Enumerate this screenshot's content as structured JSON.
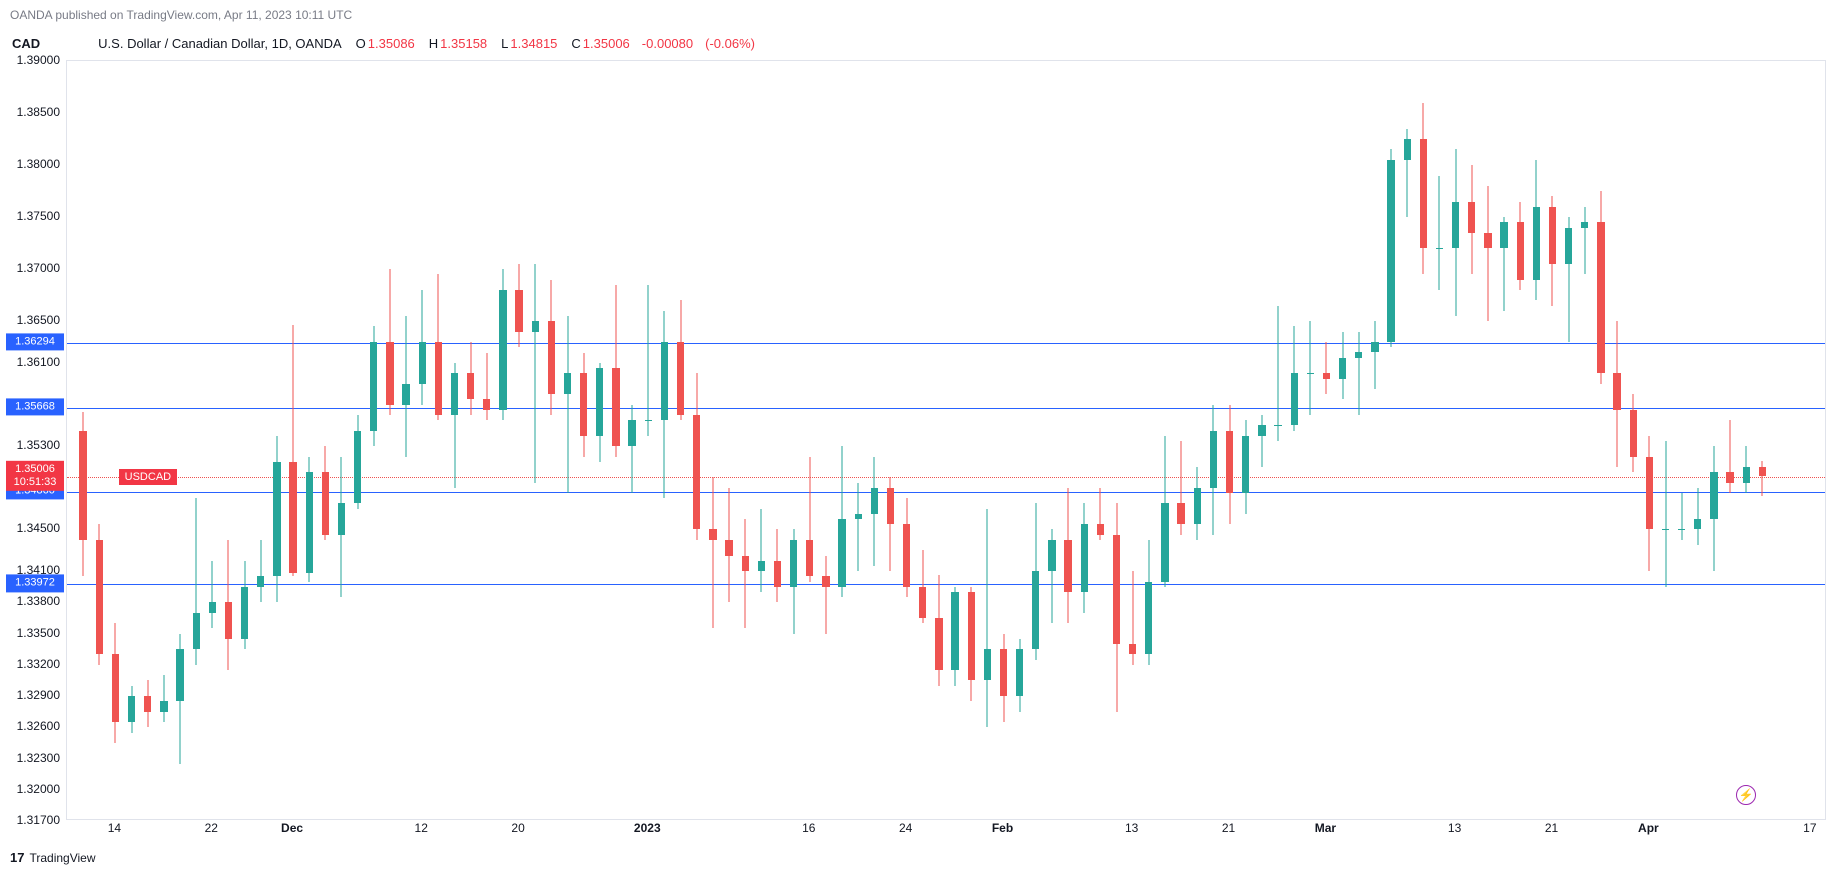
{
  "header": {
    "text": "OANDA published on TradingView.com, Apr 11, 2023 10:11 UTC"
  },
  "legend": {
    "currency": "CAD",
    "symbol_desc": "U.S. Dollar / Canadian Dollar, 1D, OANDA",
    "O_label": "O",
    "O": "1.35086",
    "H_label": "H",
    "H": "1.35158",
    "L_label": "L",
    "L": "1.34815",
    "C_label": "C",
    "C": "1.35006",
    "chg": "-0.00080",
    "chg_pct": "(-0.06%)",
    "ohlc_color": "#f23645"
  },
  "footer": {
    "brand": "TradingView",
    "icon": "17"
  },
  "chart": {
    "type": "candlestick",
    "ymin": 1.317,
    "ymax": 1.39,
    "xmin": 0,
    "xmax": 109,
    "colors": {
      "up": "#26a69a",
      "down": "#ef5350",
      "hline": "#2962ff",
      "grid": "#e0e3eb",
      "bg": "#ffffff"
    },
    "yticks": [
      {
        "v": 1.39,
        "l": "1.39000"
      },
      {
        "v": 1.385,
        "l": "1.38500"
      },
      {
        "v": 1.38,
        "l": "1.38000"
      },
      {
        "v": 1.375,
        "l": "1.37500"
      },
      {
        "v": 1.37,
        "l": "1.37000"
      },
      {
        "v": 1.365,
        "l": "1.36500"
      },
      {
        "v": 1.361,
        "l": "1.36100"
      },
      {
        "v": 1.353,
        "l": "1.35300"
      },
      {
        "v": 1.345,
        "l": "1.34500"
      },
      {
        "v": 1.341,
        "l": "1.34100"
      },
      {
        "v": 1.338,
        "l": "1.33800"
      },
      {
        "v": 1.335,
        "l": "1.33500"
      },
      {
        "v": 1.332,
        "l": "1.33200"
      },
      {
        "v": 1.329,
        "l": "1.32900"
      },
      {
        "v": 1.326,
        "l": "1.32600"
      },
      {
        "v": 1.323,
        "l": "1.32300"
      },
      {
        "v": 1.32,
        "l": "1.32000"
      },
      {
        "v": 1.317,
        "l": "1.31700"
      }
    ],
    "xticks": [
      {
        "x": 3,
        "l": "14"
      },
      {
        "x": 9,
        "l": "22"
      },
      {
        "x": 14,
        "l": "Dec",
        "major": true
      },
      {
        "x": 22,
        "l": "12"
      },
      {
        "x": 28,
        "l": "20"
      },
      {
        "x": 36,
        "l": "2023",
        "major": true
      },
      {
        "x": 46,
        "l": "16"
      },
      {
        "x": 52,
        "l": "24"
      },
      {
        "x": 58,
        "l": "Feb",
        "major": true
      },
      {
        "x": 66,
        "l": "13"
      },
      {
        "x": 72,
        "l": "21"
      },
      {
        "x": 78,
        "l": "Mar",
        "major": true
      },
      {
        "x": 86,
        "l": "13"
      },
      {
        "x": 92,
        "l": "21"
      },
      {
        "x": 98,
        "l": "Apr",
        "major": true
      },
      {
        "x": 108,
        "l": "17"
      }
    ],
    "hlines": [
      {
        "v": 1.36294,
        "l": "1.36294",
        "bg": "#2962ff"
      },
      {
        "v": 1.35668,
        "l": "1.35668",
        "bg": "#2962ff"
      },
      {
        "v": 1.3486,
        "l": "1.34860",
        "bg": "#2962ff"
      },
      {
        "v": 1.33972,
        "l": "1.33972",
        "bg": "#2962ff"
      }
    ],
    "price_line": {
      "v": 1.35006,
      "l": "1.35006",
      "sub": "10:51:33",
      "bg": "#f23645"
    },
    "ticker_badge": {
      "v": 1.35006,
      "l": "USDCAD",
      "bg": "#f23645",
      "x": 3.2
    },
    "snap_icon": {
      "x": 104,
      "v": 1.3195
    },
    "candles": [
      {
        "x": 1,
        "o": 1.3545,
        "h": 1.3563,
        "l": 1.3405,
        "c": 1.344
      },
      {
        "x": 2,
        "o": 1.344,
        "h": 1.3455,
        "l": 1.332,
        "c": 1.333
      },
      {
        "x": 3,
        "o": 1.333,
        "h": 1.336,
        "l": 1.3245,
        "c": 1.3265
      },
      {
        "x": 4,
        "o": 1.3265,
        "h": 1.33,
        "l": 1.3255,
        "c": 1.329
      },
      {
        "x": 5,
        "o": 1.329,
        "h": 1.3305,
        "l": 1.326,
        "c": 1.3275
      },
      {
        "x": 6,
        "o": 1.3275,
        "h": 1.331,
        "l": 1.3265,
        "c": 1.3285
      },
      {
        "x": 7,
        "o": 1.3285,
        "h": 1.335,
        "l": 1.3225,
        "c": 1.3335
      },
      {
        "x": 8,
        "o": 1.3335,
        "h": 1.348,
        "l": 1.332,
        "c": 1.337
      },
      {
        "x": 9,
        "o": 1.337,
        "h": 1.342,
        "l": 1.3355,
        "c": 1.338
      },
      {
        "x": 10,
        "o": 1.338,
        "h": 1.344,
        "l": 1.3315,
        "c": 1.3345
      },
      {
        "x": 11,
        "o": 1.3345,
        "h": 1.342,
        "l": 1.3335,
        "c": 1.3395
      },
      {
        "x": 12,
        "o": 1.3395,
        "h": 1.344,
        "l": 1.338,
        "c": 1.3405
      },
      {
        "x": 13,
        "o": 1.3405,
        "h": 1.354,
        "l": 1.338,
        "c": 1.3515
      },
      {
        "x": 14,
        "o": 1.3515,
        "h": 1.3646,
        "l": 1.3405,
        "c": 1.3408
      },
      {
        "x": 15,
        "o": 1.3408,
        "h": 1.352,
        "l": 1.34,
        "c": 1.3505
      },
      {
        "x": 16,
        "o": 1.3505,
        "h": 1.353,
        "l": 1.344,
        "c": 1.3445
      },
      {
        "x": 17,
        "o": 1.3445,
        "h": 1.352,
        "l": 1.3385,
        "c": 1.3475
      },
      {
        "x": 18,
        "o": 1.3475,
        "h": 1.356,
        "l": 1.347,
        "c": 1.3545
      },
      {
        "x": 19,
        "o": 1.3545,
        "h": 1.3645,
        "l": 1.353,
        "c": 1.363
      },
      {
        "x": 20,
        "o": 1.363,
        "h": 1.37,
        "l": 1.356,
        "c": 1.357
      },
      {
        "x": 21,
        "o": 1.357,
        "h": 1.3655,
        "l": 1.352,
        "c": 1.359
      },
      {
        "x": 22,
        "o": 1.359,
        "h": 1.368,
        "l": 1.357,
        "c": 1.363
      },
      {
        "x": 23,
        "o": 1.363,
        "h": 1.3695,
        "l": 1.3555,
        "c": 1.356
      },
      {
        "x": 24,
        "o": 1.356,
        "h": 1.361,
        "l": 1.349,
        "c": 1.36
      },
      {
        "x": 25,
        "o": 1.36,
        "h": 1.363,
        "l": 1.356,
        "c": 1.3575
      },
      {
        "x": 26,
        "o": 1.3575,
        "h": 1.362,
        "l": 1.3555,
        "c": 1.3565
      },
      {
        "x": 27,
        "o": 1.3565,
        "h": 1.37,
        "l": 1.3555,
        "c": 1.368
      },
      {
        "x": 28,
        "o": 1.368,
        "h": 1.3705,
        "l": 1.3625,
        "c": 1.364
      },
      {
        "x": 29,
        "o": 1.364,
        "h": 1.3705,
        "l": 1.3495,
        "c": 1.365
      },
      {
        "x": 30,
        "o": 1.365,
        "h": 1.369,
        "l": 1.356,
        "c": 1.358
      },
      {
        "x": 31,
        "o": 1.358,
        "h": 1.3655,
        "l": 1.3485,
        "c": 1.36
      },
      {
        "x": 32,
        "o": 1.36,
        "h": 1.362,
        "l": 1.352,
        "c": 1.354
      },
      {
        "x": 33,
        "o": 1.354,
        "h": 1.361,
        "l": 1.3515,
        "c": 1.3605
      },
      {
        "x": 34,
        "o": 1.3605,
        "h": 1.3685,
        "l": 1.352,
        "c": 1.353
      },
      {
        "x": 35,
        "o": 1.353,
        "h": 1.357,
        "l": 1.3485,
        "c": 1.3555
      },
      {
        "x": 36,
        "o": 1.3555,
        "h": 1.3685,
        "l": 1.354,
        "c": 1.3555
      },
      {
        "x": 37,
        "o": 1.3555,
        "h": 1.366,
        "l": 1.348,
        "c": 1.363
      },
      {
        "x": 38,
        "o": 1.363,
        "h": 1.367,
        "l": 1.3555,
        "c": 1.356
      },
      {
        "x": 39,
        "o": 1.356,
        "h": 1.36,
        "l": 1.344,
        "c": 1.345
      },
      {
        "x": 40,
        "o": 1.345,
        "h": 1.35,
        "l": 1.3355,
        "c": 1.344
      },
      {
        "x": 41,
        "o": 1.344,
        "h": 1.349,
        "l": 1.338,
        "c": 1.3425
      },
      {
        "x": 42,
        "o": 1.3425,
        "h": 1.346,
        "l": 1.3355,
        "c": 1.341
      },
      {
        "x": 43,
        "o": 1.341,
        "h": 1.347,
        "l": 1.339,
        "c": 1.342
      },
      {
        "x": 44,
        "o": 1.342,
        "h": 1.345,
        "l": 1.338,
        "c": 1.3395
      },
      {
        "x": 45,
        "o": 1.3395,
        "h": 1.345,
        "l": 1.335,
        "c": 1.344
      },
      {
        "x": 46,
        "o": 1.344,
        "h": 1.352,
        "l": 1.34,
        "c": 1.3405
      },
      {
        "x": 47,
        "o": 1.3405,
        "h": 1.3425,
        "l": 1.335,
        "c": 1.3395
      },
      {
        "x": 48,
        "o": 1.3395,
        "h": 1.353,
        "l": 1.3385,
        "c": 1.346
      },
      {
        "x": 49,
        "o": 1.346,
        "h": 1.3495,
        "l": 1.341,
        "c": 1.3465
      },
      {
        "x": 50,
        "o": 1.3465,
        "h": 1.352,
        "l": 1.3415,
        "c": 1.349
      },
      {
        "x": 51,
        "o": 1.349,
        "h": 1.35,
        "l": 1.341,
        "c": 1.3455
      },
      {
        "x": 52,
        "o": 1.3455,
        "h": 1.348,
        "l": 1.3385,
        "c": 1.3395
      },
      {
        "x": 53,
        "o": 1.3395,
        "h": 1.343,
        "l": 1.336,
        "c": 1.3365
      },
      {
        "x": 54,
        "o": 1.3365,
        "h": 1.3406,
        "l": 1.33,
        "c": 1.3315
      },
      {
        "x": 55,
        "o": 1.3315,
        "h": 1.3395,
        "l": 1.33,
        "c": 1.339
      },
      {
        "x": 56,
        "o": 1.339,
        "h": 1.3395,
        "l": 1.3285,
        "c": 1.3305
      },
      {
        "x": 57,
        "o": 1.3305,
        "h": 1.347,
        "l": 1.326,
        "c": 1.3335
      },
      {
        "x": 58,
        "o": 1.3335,
        "h": 1.335,
        "l": 1.3265,
        "c": 1.329
      },
      {
        "x": 59,
        "o": 1.329,
        "h": 1.3345,
        "l": 1.3275,
        "c": 1.3335
      },
      {
        "x": 60,
        "o": 1.3335,
        "h": 1.3475,
        "l": 1.3325,
        "c": 1.341
      },
      {
        "x": 61,
        "o": 1.341,
        "h": 1.345,
        "l": 1.336,
        "c": 1.344
      },
      {
        "x": 62,
        "o": 1.344,
        "h": 1.349,
        "l": 1.336,
        "c": 1.339
      },
      {
        "x": 63,
        "o": 1.339,
        "h": 1.3475,
        "l": 1.337,
        "c": 1.3455
      },
      {
        "x": 64,
        "o": 1.3455,
        "h": 1.349,
        "l": 1.344,
        "c": 1.3445
      },
      {
        "x": 65,
        "o": 1.3445,
        "h": 1.3475,
        "l": 1.3275,
        "c": 1.334
      },
      {
        "x": 66,
        "o": 1.334,
        "h": 1.341,
        "l": 1.332,
        "c": 1.333
      },
      {
        "x": 67,
        "o": 1.333,
        "h": 1.344,
        "l": 1.332,
        "c": 1.34
      },
      {
        "x": 68,
        "o": 1.34,
        "h": 1.354,
        "l": 1.3395,
        "c": 1.3475
      },
      {
        "x": 69,
        "o": 1.3475,
        "h": 1.3535,
        "l": 1.3445,
        "c": 1.3455
      },
      {
        "x": 70,
        "o": 1.3455,
        "h": 1.351,
        "l": 1.344,
        "c": 1.349
      },
      {
        "x": 71,
        "o": 1.349,
        "h": 1.357,
        "l": 1.3445,
        "c": 1.3545
      },
      {
        "x": 72,
        "o": 1.3545,
        "h": 1.357,
        "l": 1.3455,
        "c": 1.3485
      },
      {
        "x": 73,
        "o": 1.3485,
        "h": 1.3555,
        "l": 1.3465,
        "c": 1.354
      },
      {
        "x": 74,
        "o": 1.354,
        "h": 1.356,
        "l": 1.351,
        "c": 1.355
      },
      {
        "x": 75,
        "o": 1.355,
        "h": 1.3665,
        "l": 1.3535,
        "c": 1.355
      },
      {
        "x": 76,
        "o": 1.355,
        "h": 1.3645,
        "l": 1.3545,
        "c": 1.36
      },
      {
        "x": 77,
        "o": 1.36,
        "h": 1.365,
        "l": 1.356,
        "c": 1.36
      },
      {
        "x": 78,
        "o": 1.36,
        "h": 1.363,
        "l": 1.358,
        "c": 1.3595
      },
      {
        "x": 79,
        "o": 1.3595,
        "h": 1.364,
        "l": 1.3575,
        "c": 1.3615
      },
      {
        "x": 80,
        "o": 1.3615,
        "h": 1.364,
        "l": 1.356,
        "c": 1.362
      },
      {
        "x": 81,
        "o": 1.362,
        "h": 1.365,
        "l": 1.3585,
        "c": 1.363
      },
      {
        "x": 82,
        "o": 1.363,
        "h": 1.3815,
        "l": 1.3625,
        "c": 1.3805
      },
      {
        "x": 83,
        "o": 1.3805,
        "h": 1.3835,
        "l": 1.375,
        "c": 1.3825
      },
      {
        "x": 84,
        "o": 1.3825,
        "h": 1.386,
        "l": 1.3695,
        "c": 1.372
      },
      {
        "x": 85,
        "o": 1.372,
        "h": 1.379,
        "l": 1.368,
        "c": 1.372
      },
      {
        "x": 86,
        "o": 1.372,
        "h": 1.3815,
        "l": 1.3655,
        "c": 1.3765
      },
      {
        "x": 87,
        "o": 1.3765,
        "h": 1.38,
        "l": 1.3695,
        "c": 1.3735
      },
      {
        "x": 88,
        "o": 1.3735,
        "h": 1.378,
        "l": 1.365,
        "c": 1.372
      },
      {
        "x": 89,
        "o": 1.372,
        "h": 1.375,
        "l": 1.366,
        "c": 1.3745
      },
      {
        "x": 90,
        "o": 1.3745,
        "h": 1.3765,
        "l": 1.368,
        "c": 1.369
      },
      {
        "x": 91,
        "o": 1.369,
        "h": 1.3805,
        "l": 1.367,
        "c": 1.376
      },
      {
        "x": 92,
        "o": 1.376,
        "h": 1.377,
        "l": 1.3665,
        "c": 1.3705
      },
      {
        "x": 93,
        "o": 1.3705,
        "h": 1.375,
        "l": 1.363,
        "c": 1.374
      },
      {
        "x": 94,
        "o": 1.374,
        "h": 1.376,
        "l": 1.3695,
        "c": 1.3745
      },
      {
        "x": 95,
        "o": 1.3745,
        "h": 1.3775,
        "l": 1.359,
        "c": 1.36
      },
      {
        "x": 96,
        "o": 1.36,
        "h": 1.365,
        "l": 1.351,
        "c": 1.3565
      },
      {
        "x": 97,
        "o": 1.3565,
        "h": 1.358,
        "l": 1.3505,
        "c": 1.352
      },
      {
        "x": 98,
        "o": 1.352,
        "h": 1.354,
        "l": 1.341,
        "c": 1.345
      },
      {
        "x": 99,
        "o": 1.345,
        "h": 1.3535,
        "l": 1.3395,
        "c": 1.345
      },
      {
        "x": 100,
        "o": 1.345,
        "h": 1.3485,
        "l": 1.344,
        "c": 1.345
      },
      {
        "x": 101,
        "o": 1.345,
        "h": 1.349,
        "l": 1.3435,
        "c": 1.346
      },
      {
        "x": 102,
        "o": 1.346,
        "h": 1.353,
        "l": 1.341,
        "c": 1.3505
      },
      {
        "x": 103,
        "o": 1.3505,
        "h": 1.3555,
        "l": 1.3485,
        "c": 1.3495
      },
      {
        "x": 104,
        "o": 1.3495,
        "h": 1.353,
        "l": 1.3485,
        "c": 1.351
      },
      {
        "x": 105,
        "o": 1.351,
        "h": 1.3516,
        "l": 1.3482,
        "c": 1.3501
      }
    ]
  }
}
